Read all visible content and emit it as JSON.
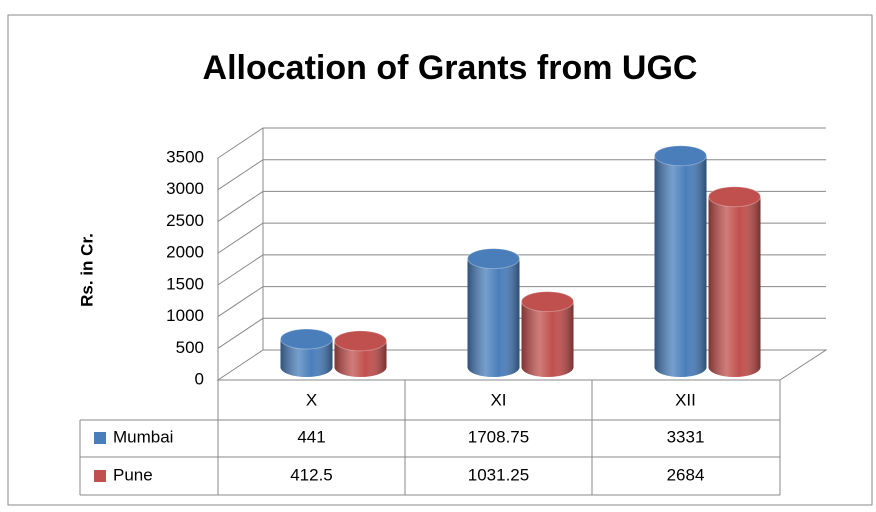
{
  "chart_data": {
    "type": "bar3d",
    "title": "Allocation of Grants from UGC",
    "y_label": "Rs. in Cr.",
    "categories": [
      "X",
      "XI",
      "XII"
    ],
    "series": [
      {
        "name": "Mumbai",
        "color": "#4a7ebb",
        "values": [
          441,
          1708.75,
          3331
        ]
      },
      {
        "name": "Pune",
        "color": "#c0504d",
        "values": [
          412.5,
          1031.25,
          2684
        ]
      }
    ],
    "ylim": [
      0,
      3500
    ],
    "yticks": [
      0,
      500,
      1000,
      1500,
      2000,
      2500,
      3000,
      3500
    ],
    "grid": true,
    "legend": "table"
  }
}
